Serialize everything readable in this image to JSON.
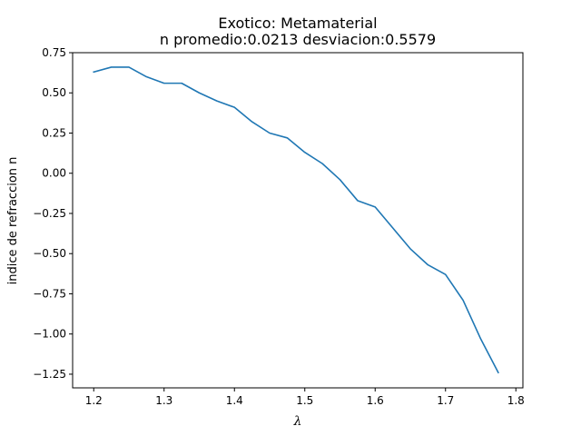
{
  "chart_data": {
    "type": "line",
    "title": "Exotico: Metamaterial",
    "subtitle": "n promedio:0.0213 desviacion:0.5579",
    "xlabel": "λ",
    "ylabel": "indice de refraccion n",
    "xlim": [
      1.17,
      1.81
    ],
    "ylim": [
      -1.335,
      0.75
    ],
    "xticks": [
      1.2,
      1.3,
      1.4,
      1.5,
      1.6,
      1.7,
      1.8
    ],
    "xtick_labels": [
      "1.2",
      "1.3",
      "1.4",
      "1.5",
      "1.6",
      "1.7",
      "1.8"
    ],
    "yticks": [
      0.75,
      0.5,
      0.25,
      0.0,
      -0.25,
      -0.5,
      -0.75,
      -1.0,
      -1.25
    ],
    "ytick_labels": [
      "0.75",
      "0.50",
      "0.25",
      "0.00",
      "−0.25",
      "−0.50",
      "−0.75",
      "−1.00",
      "−1.25"
    ],
    "grid": false,
    "line_color": "#1f77b4",
    "series": [
      {
        "x": [
          1.2,
          1.225,
          1.25,
          1.275,
          1.3,
          1.325,
          1.35,
          1.375,
          1.4,
          1.425,
          1.45,
          1.475,
          1.5,
          1.525,
          1.55,
          1.575,
          1.6,
          1.625,
          1.65,
          1.675,
          1.7,
          1.725,
          1.75,
          1.775
        ],
        "y": [
          0.63,
          0.66,
          0.66,
          0.6,
          0.56,
          0.56,
          0.5,
          0.45,
          0.41,
          0.32,
          0.25,
          0.22,
          0.13,
          0.06,
          -0.04,
          -0.17,
          -0.21,
          -0.34,
          -0.47,
          -0.57,
          -0.63,
          -0.79,
          -1.03,
          -1.24
        ]
      }
    ]
  }
}
